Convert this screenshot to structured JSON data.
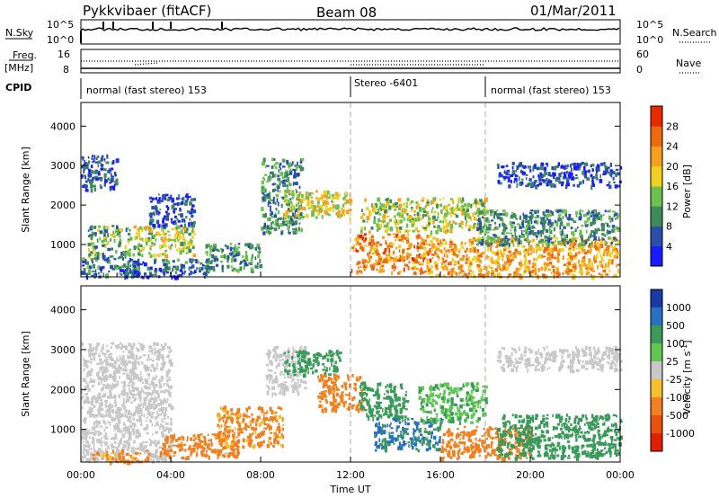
{
  "header": {
    "title": "Pykkvibaer (fitACF)",
    "beam": "Beam 08",
    "date": "01/Mar/2011"
  },
  "status_panels": {
    "nsky_label": "N.Sky",
    "nsky_ticks": [
      "10^5",
      "10^0"
    ],
    "nsearch_label": "N.Search",
    "nsearch_ticks": [
      "10^5",
      "10^0"
    ],
    "freq_label": "Freq.",
    "freq_unit": "[MHz]",
    "freq_ticks": [
      "16",
      "8"
    ],
    "nave_label": "Nave",
    "nave_ticks": [
      "60",
      "0"
    ],
    "cpid_label": "CPID",
    "cpid_segments": [
      {
        "start_hour": 0,
        "end_hour": 12,
        "label": "normal (fast stereo) 153"
      },
      {
        "start_hour": 12,
        "end_hour": 18,
        "label": "Stereo -6401"
      },
      {
        "start_hour": 18,
        "end_hour": 24,
        "label": "normal (fast stereo) 153"
      }
    ]
  },
  "chart_data": [
    {
      "type": "heatmap",
      "title": "",
      "xlabel": "",
      "ylabel": "Slant Range [km]",
      "xlim": [
        0,
        24
      ],
      "ylim": [
        180,
        4600
      ],
      "yticks": [
        1000,
        2000,
        3000,
        4000
      ],
      "colorbar": {
        "label": "Power [dB]",
        "ticks": [
          "4",
          "8",
          "12",
          "16",
          "20",
          "24",
          "28"
        ],
        "colors": [
          "#1a1aff",
          "#2a4fa8",
          "#3f8a5a",
          "#6cc050",
          "#f0d020",
          "#f5a020",
          "#ee6a10",
          "#e82a00"
        ]
      },
      "echo_regions": [
        {
          "x": [
            0.0,
            1.6
          ],
          "y": [
            2400,
            3300
          ],
          "value": 6
        },
        {
          "x": [
            0.0,
            2.6
          ],
          "y": [
            200,
            700
          ],
          "value": 8
        },
        {
          "x": [
            0.3,
            2.2
          ],
          "y": [
            700,
            1500
          ],
          "value": 12
        },
        {
          "x": [
            2.0,
            5.8
          ],
          "y": [
            200,
            650
          ],
          "value": 7
        },
        {
          "x": [
            2.3,
            5.0
          ],
          "y": [
            750,
            1500
          ],
          "value": 16
        },
        {
          "x": [
            3.0,
            5.0
          ],
          "y": [
            1500,
            2300
          ],
          "value": 5
        },
        {
          "x": [
            5.5,
            8.0
          ],
          "y": [
            350,
            1050
          ],
          "value": 10
        },
        {
          "x": [
            8.0,
            9.8
          ],
          "y": [
            1300,
            3200
          ],
          "value": 10
        },
        {
          "x": [
            9.0,
            12.0
          ],
          "y": [
            1700,
            2400
          ],
          "value": 18
        },
        {
          "x": [
            12.0,
            15.5
          ],
          "y": [
            300,
            1300
          ],
          "value": 24
        },
        {
          "x": [
            12.4,
            18.0
          ],
          "y": [
            1350,
            2200
          ],
          "value": 16
        },
        {
          "x": [
            15.5,
            23.9
          ],
          "y": [
            200,
            1200
          ],
          "value": 22
        },
        {
          "x": [
            17.6,
            23.9
          ],
          "y": [
            1000,
            1900
          ],
          "value": 10
        },
        {
          "x": [
            18.5,
            24.0
          ],
          "y": [
            2500,
            3100
          ],
          "value": 5
        }
      ]
    },
    {
      "type": "heatmap",
      "title": "",
      "xlabel": "Time UT",
      "ylabel": "Slant Range [km]",
      "xlim": [
        0,
        24
      ],
      "ylim": [
        180,
        4600
      ],
      "yticks": [
        1000,
        2000,
        3000,
        4000
      ],
      "xticks": [
        "00:00",
        "04:00",
        "08:00",
        "12:00",
        "16:00",
        "20:00",
        "00:00"
      ],
      "colorbar": {
        "label": "Velocity [m s^-1]",
        "ticks": [
          "1000",
          "500",
          "100",
          "25",
          "-25",
          "-100",
          "-500",
          "-1000"
        ],
        "colors": [
          "#1a3aa8",
          "#2a70c0",
          "#3a9a5a",
          "#60c850",
          "#c8c8c8",
          "#f5c030",
          "#f08020",
          "#ea5010",
          "#e02000"
        ]
      },
      "echo_regions": [
        {
          "x": [
            0.0,
            4.0
          ],
          "y": [
            200,
            3200
          ],
          "value": 0
        },
        {
          "x": [
            0.5,
            3.0
          ],
          "y": [
            200,
            500
          ],
          "value": -150
        },
        {
          "x": [
            3.5,
            7.0
          ],
          "y": [
            300,
            900
          ],
          "value": -200
        },
        {
          "x": [
            6.0,
            9.0
          ],
          "y": [
            600,
            1600
          ],
          "value": -150
        },
        {
          "x": [
            8.2,
            10.0
          ],
          "y": [
            1900,
            3100
          ],
          "value": 0
        },
        {
          "x": [
            9.0,
            11.5
          ],
          "y": [
            2400,
            3000
          ],
          "value": 300
        },
        {
          "x": [
            10.5,
            12.5
          ],
          "y": [
            1500,
            2400
          ],
          "value": -200
        },
        {
          "x": [
            12.3,
            14.5
          ],
          "y": [
            1300,
            2200
          ],
          "value": 300
        },
        {
          "x": [
            13.0,
            16.0
          ],
          "y": [
            500,
            1300
          ],
          "value": 500
        },
        {
          "x": [
            15.0,
            18.0
          ],
          "y": [
            1200,
            2200
          ],
          "value": 80
        },
        {
          "x": [
            16.0,
            20.0
          ],
          "y": [
            300,
            1100
          ],
          "value": -300
        },
        {
          "x": [
            18.5,
            24.0
          ],
          "y": [
            300,
            1400
          ],
          "value": 200
        },
        {
          "x": [
            18.5,
            24.0
          ],
          "y": [
            2500,
            3100
          ],
          "value": 0
        }
      ]
    }
  ]
}
